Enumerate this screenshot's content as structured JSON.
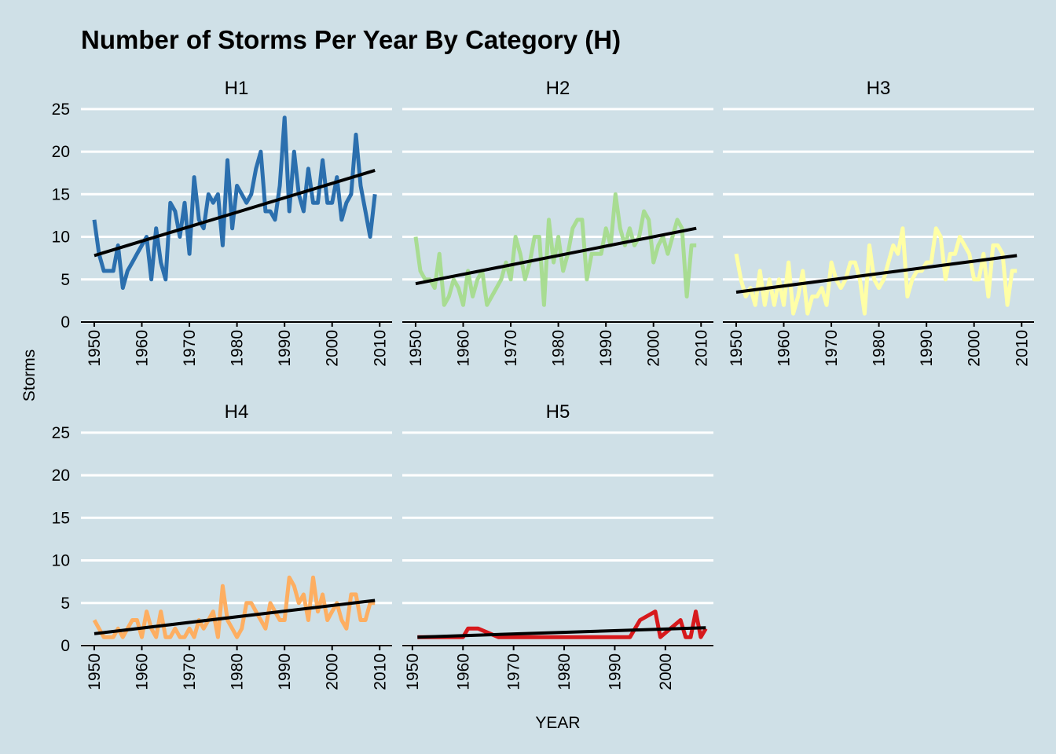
{
  "title": "Number of Storms Per Year By Category (H)",
  "x_label": "YEAR",
  "y_label": "Storms",
  "chart_data": [
    {
      "type": "line",
      "title": "H1",
      "color": "#2b6fae",
      "x": [
        1950,
        1951,
        1952,
        1953,
        1954,
        1955,
        1956,
        1957,
        1958,
        1959,
        1960,
        1961,
        1962,
        1963,
        1964,
        1965,
        1966,
        1967,
        1968,
        1969,
        1970,
        1971,
        1972,
        1973,
        1974,
        1975,
        1976,
        1977,
        1978,
        1979,
        1980,
        1981,
        1982,
        1983,
        1984,
        1985,
        1986,
        1987,
        1988,
        1989,
        1990,
        1991,
        1992,
        1993,
        1994,
        1995,
        1996,
        1997,
        1998,
        1999,
        2000,
        2001,
        2002,
        2003,
        2004,
        2005,
        2006,
        2007,
        2008,
        2009
      ],
      "values": [
        12,
        8,
        6,
        6,
        6,
        9,
        4,
        6,
        7,
        8,
        9,
        10,
        5,
        11,
        7,
        5,
        14,
        13,
        10,
        14,
        8,
        17,
        12,
        11,
        15,
        14,
        15,
        9,
        19,
        11,
        16,
        15,
        14,
        15,
        18,
        20,
        13,
        13,
        12,
        16,
        24,
        13,
        20,
        15,
        13,
        18,
        14,
        14,
        19,
        14,
        14,
        17,
        12,
        14,
        15,
        22,
        16,
        13,
        10,
        15
      ],
      "trend": {
        "x": [
          1950,
          2009
        ],
        "values": [
          7.8,
          17.8
        ]
      },
      "xlim": [
        1947.2,
        2012.6
      ],
      "xticks": [
        1950,
        1960,
        1970,
        1980,
        1990,
        2000,
        2010
      ],
      "ylim": [
        0,
        26
      ],
      "yticks": [
        0,
        5,
        10,
        15,
        20,
        25
      ],
      "grid": true
    },
    {
      "type": "line",
      "title": "H2",
      "color": "#a8dc92",
      "x": [
        1950,
        1951,
        1952,
        1953,
        1954,
        1955,
        1956,
        1957,
        1958,
        1959,
        1960,
        1961,
        1962,
        1963,
        1964,
        1965,
        1966,
        1967,
        1968,
        1969,
        1970,
        1971,
        1972,
        1973,
        1974,
        1975,
        1976,
        1977,
        1978,
        1979,
        1980,
        1981,
        1982,
        1983,
        1984,
        1985,
        1986,
        1987,
        1988,
        1989,
        1990,
        1991,
        1992,
        1993,
        1994,
        1995,
        1996,
        1997,
        1998,
        1999,
        2000,
        2001,
        2002,
        2003,
        2004,
        2005,
        2006,
        2007,
        2008,
        2009
      ],
      "values": [
        10,
        6,
        5,
        5,
        4,
        8,
        2,
        3,
        5,
        4,
        2,
        6,
        3,
        5,
        6,
        2,
        3,
        4,
        5,
        7,
        5,
        10,
        8,
        5,
        7,
        10,
        10,
        2,
        12,
        7,
        10,
        6,
        8,
        11,
        12,
        12,
        5,
        8,
        8,
        8,
        11,
        9,
        15,
        11,
        9,
        11,
        9,
        10,
        13,
        12,
        7,
        9,
        10,
        8,
        10,
        12,
        11,
        3,
        9,
        9
      ],
      "trend": {
        "x": [
          1950,
          2009
        ],
        "values": [
          4.5,
          11
        ]
      },
      "xlim": [
        1947.2,
        2012.6
      ],
      "xticks": [
        1950,
        1960,
        1970,
        1980,
        1990,
        2000,
        2010
      ],
      "ylim": [
        0,
        26
      ],
      "yticks": [
        0,
        5,
        10,
        15,
        20,
        25
      ],
      "grid": true
    },
    {
      "type": "line",
      "title": "H3",
      "color": "#ffffa6",
      "x": [
        1950,
        1951,
        1952,
        1953,
        1954,
        1955,
        1956,
        1957,
        1958,
        1959,
        1960,
        1961,
        1962,
        1963,
        1964,
        1965,
        1966,
        1967,
        1968,
        1969,
        1970,
        1971,
        1972,
        1973,
        1974,
        1975,
        1976,
        1977,
        1978,
        1979,
        1980,
        1981,
        1982,
        1983,
        1984,
        1985,
        1986,
        1987,
        1988,
        1989,
        1990,
        1991,
        1992,
        1993,
        1994,
        1995,
        1996,
        1997,
        1998,
        1999,
        2000,
        2001,
        2002,
        2003,
        2004,
        2005,
        2006,
        2007,
        2008,
        2009
      ],
      "values": [
        8,
        5,
        3,
        4,
        2,
        6,
        2,
        5,
        2,
        5,
        2,
        7,
        1,
        3,
        6,
        1,
        3,
        3,
        4,
        2,
        7,
        5,
        4,
        5,
        7,
        7,
        5,
        1,
        9,
        5,
        4,
        5,
        7,
        9,
        8,
        11,
        3,
        5,
        6,
        6,
        7,
        7,
        11,
        10,
        5,
        8,
        8,
        10,
        9,
        8,
        5,
        5,
        8,
        3,
        9,
        9,
        8,
        2,
        6,
        6
      ],
      "trend": {
        "x": [
          1950,
          2009
        ],
        "values": [
          3.5,
          7.8
        ]
      },
      "xlim": [
        1947.2,
        2012.6
      ],
      "xticks": [
        1950,
        1960,
        1970,
        1980,
        1990,
        2000,
        2010
      ],
      "ylim": [
        0,
        26
      ],
      "yticks": [
        0,
        5,
        10,
        15,
        20,
        25
      ],
      "grid": true
    },
    {
      "type": "line",
      "title": "H4",
      "color": "#fdae61",
      "x": [
        1950,
        1951,
        1952,
        1953,
        1954,
        1955,
        1956,
        1957,
        1958,
        1959,
        1960,
        1961,
        1962,
        1963,
        1964,
        1965,
        1966,
        1967,
        1968,
        1969,
        1970,
        1971,
        1972,
        1973,
        1974,
        1975,
        1976,
        1977,
        1978,
        1979,
        1980,
        1981,
        1982,
        1983,
        1984,
        1985,
        1986,
        1987,
        1988,
        1989,
        1990,
        1991,
        1992,
        1993,
        1994,
        1995,
        1996,
        1997,
        1998,
        1999,
        2000,
        2001,
        2002,
        2003,
        2004,
        2005,
        2006,
        2007,
        2008,
        2009
      ],
      "values": [
        3,
        2,
        1,
        1,
        1,
        2,
        1,
        2,
        3,
        3,
        1,
        4,
        2,
        1,
        4,
        1,
        1,
        2,
        1,
        1,
        2,
        1,
        3,
        2,
        3,
        4,
        1,
        7,
        3,
        2,
        1,
        2,
        5,
        5,
        4,
        3,
        2,
        5,
        4,
        3,
        3,
        8,
        7,
        5,
        6,
        3,
        8,
        4,
        6,
        3,
        4,
        5,
        3,
        2,
        6,
        6,
        3,
        3,
        5,
        5
      ],
      "trend": {
        "x": [
          1950,
          2009
        ],
        "values": [
          1.4,
          5.3
        ]
      },
      "xlim": [
        1947.2,
        2012.6
      ],
      "xticks": [
        1950,
        1960,
        1970,
        1980,
        1990,
        2000,
        2010
      ],
      "ylim": [
        0,
        26
      ],
      "yticks": [
        0,
        5,
        10,
        15,
        20,
        25
      ],
      "grid": true
    },
    {
      "type": "line",
      "title": "H5",
      "color": "#d7191c",
      "x": [
        1951,
        1953,
        1955,
        1958,
        1960,
        1961,
        1963,
        1967,
        1969,
        1971,
        1974,
        1977,
        1980,
        1985,
        1989,
        1992,
        1993,
        1995,
        1998,
        1999,
        2003,
        2004,
        2005,
        2006,
        2007,
        2008
      ],
      "values": [
        1,
        1,
        1,
        1,
        1,
        2,
        2,
        1,
        1,
        1,
        1,
        1,
        1,
        1,
        1,
        1,
        1,
        3,
        4,
        1,
        3,
        1,
        1,
        4,
        1,
        2
      ],
      "trend": {
        "x": [
          1951,
          2008
        ],
        "values": [
          1,
          2.1
        ]
      },
      "xlim": [
        1948,
        2009.5
      ],
      "xticks": [
        1950,
        1960,
        1970,
        1980,
        1990,
        2000
      ],
      "ylim": [
        0,
        26
      ],
      "yticks": [
        0,
        5,
        10,
        15,
        20,
        25
      ],
      "grid": true
    }
  ]
}
